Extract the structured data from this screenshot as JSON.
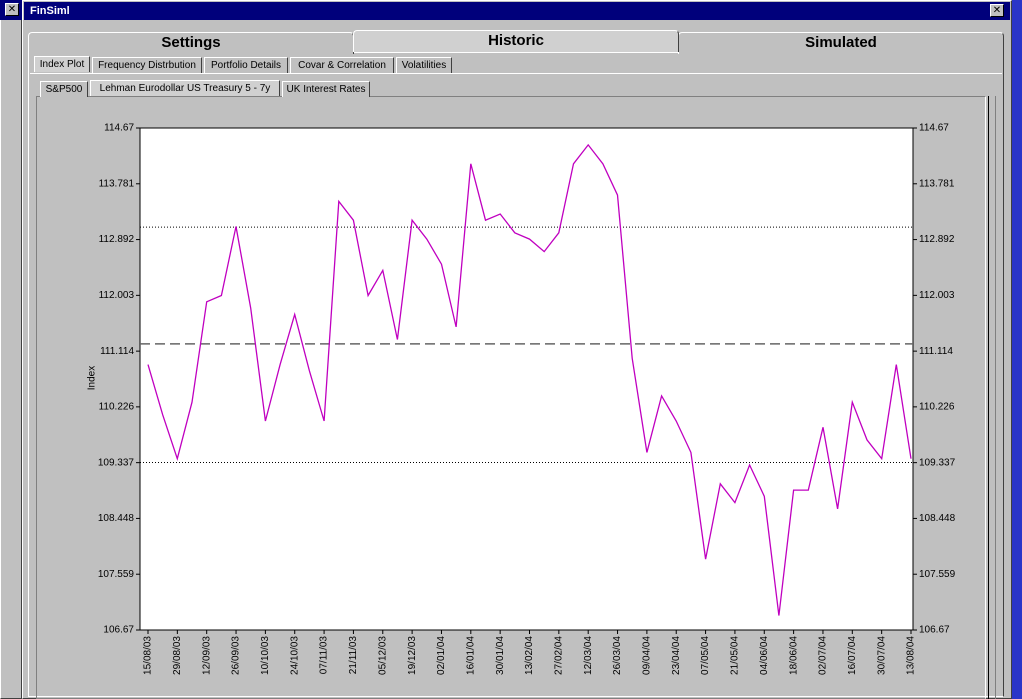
{
  "window_title": "FinSiml",
  "top_tabs": [
    "Settings",
    "Historic",
    "Simulated"
  ],
  "sub_tabs": [
    "Index Plot",
    "Frequency Distrbution",
    "Portfolio Details",
    "Covar & Correlation",
    "Volatilities"
  ],
  "series_tabs": [
    "S&P500",
    "Lehman Eurodollar US Treasury 5 - 7y",
    "UK Interest Rates"
  ],
  "chart_data": {
    "type": "line",
    "y_label": "Index",
    "x": [
      "15/08/03",
      "22/08/03",
      "29/08/03",
      "05/09/03",
      "12/09/03",
      "19/09/03",
      "26/09/03",
      "03/10/03",
      "10/10/03",
      "17/10/03",
      "24/10/03",
      "31/10/03",
      "07/11/03",
      "14/11/03",
      "21/11/03",
      "28/11/03",
      "05/12/03",
      "12/12/03",
      "19/12/03",
      "26/12/03",
      "02/01/04",
      "09/01/04",
      "16/01/04",
      "23/01/04",
      "30/01/04",
      "06/02/04",
      "13/02/04",
      "20/02/04",
      "27/02/04",
      "05/03/04",
      "12/03/04",
      "19/03/04",
      "26/03/04",
      "02/04/04",
      "09/04/04",
      "16/04/04",
      "23/04/04",
      "30/04/04",
      "07/05/04",
      "14/05/04",
      "21/05/04",
      "28/05/04",
      "04/06/04",
      "11/06/04",
      "18/06/04",
      "25/06/04",
      "02/07/04",
      "09/07/04",
      "16/07/04",
      "23/07/04",
      "30/07/04",
      "06/08/04",
      "13/08/04"
    ],
    "series": [
      {
        "color": "#c000c0",
        "values": [
          110.9,
          110.1,
          109.4,
          110.3,
          111.9,
          112.0,
          113.1,
          111.8,
          110.0,
          110.9,
          111.7,
          110.8,
          110.0,
          113.5,
          113.2,
          112.0,
          112.4,
          111.3,
          113.2,
          112.9,
          112.5,
          111.5,
          114.1,
          113.2,
          113.3,
          113.0,
          112.9,
          112.7,
          113.0,
          114.1,
          114.4,
          114.1,
          113.6,
          111.0,
          109.5,
          110.4,
          110.0,
          109.5,
          107.8,
          109.0,
          108.7,
          109.3,
          108.8,
          106.9,
          108.9,
          108.9,
          109.9,
          108.6,
          110.3,
          109.7,
          109.4,
          110.9,
          109.4
        ]
      }
    ],
    "xticks": [
      "15/08/03",
      "29/08/03",
      "12/09/03",
      "26/09/03",
      "10/10/03",
      "24/10/03",
      "07/11/03",
      "21/11/03",
      "05/12/03",
      "19/12/03",
      "02/01/04",
      "16/01/04",
      "30/01/04",
      "13/02/04",
      "27/02/04",
      "12/03/04",
      "26/03/04",
      "09/04/04",
      "23/04/04",
      "07/05/04",
      "21/05/04",
      "04/06/04",
      "18/06/04",
      "02/07/04",
      "16/07/04",
      "30/07/04",
      "13/08/04"
    ],
    "ylim": [
      106.67,
      114.67
    ],
    "yticks": [
      106.67,
      107.559,
      108.448,
      109.337,
      110.226,
      111.114,
      112.003,
      112.892,
      113.781,
      114.67
    ],
    "reference_lines": [
      {
        "value": 113.09,
        "style": "dotted"
      },
      {
        "value": 111.23,
        "style": "dashed"
      },
      {
        "value": 109.34,
        "style": "dotted"
      }
    ]
  }
}
